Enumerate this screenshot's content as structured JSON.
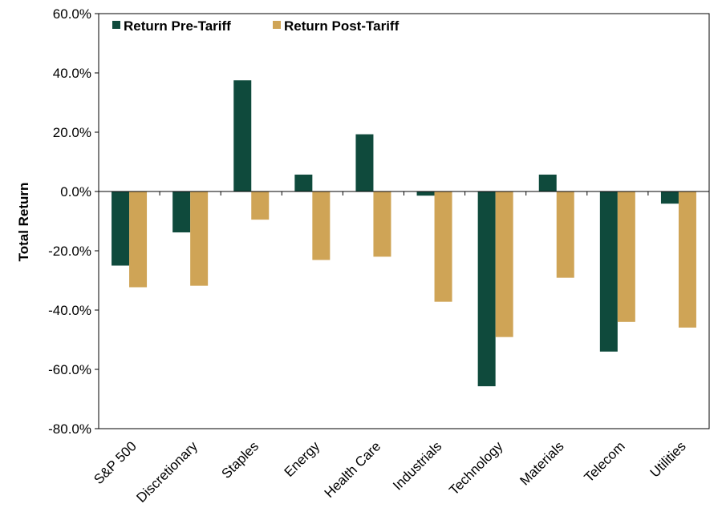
{
  "chart_data": {
    "type": "bar",
    "title": "",
    "xlabel": "",
    "ylabel": "Total Return",
    "ylim": [
      -80,
      60
    ],
    "yticks": [
      60,
      40,
      20,
      0,
      -20,
      -40,
      -60,
      -80
    ],
    "ytick_labels": [
      "60.0%",
      "40.0%",
      "20.0%",
      "0.0%",
      "-20.0%",
      "-40.0%",
      "-60.0%",
      "-80.0%"
    ],
    "grid": false,
    "legend_position": "top-left",
    "categories": [
      "S&P 500",
      "Discretionary",
      "Staples",
      "Energy",
      "Health Care",
      "Industrials",
      "Technology",
      "Materials",
      "Telecom",
      "Utilities"
    ],
    "series": [
      {
        "name": "Return Pre-Tariff",
        "color": "#0f4a3c",
        "values": [
          -25.0,
          -13.8,
          37.5,
          5.7,
          19.3,
          -1.4,
          -65.7,
          5.7,
          -54.0,
          -4.1
        ]
      },
      {
        "name": "Return Post-Tariff",
        "color": "#cfa456",
        "values": [
          -32.3,
          -31.8,
          -9.5,
          -23.1,
          -22.0,
          -37.2,
          -49.1,
          -29.1,
          -44.0,
          -45.9
        ]
      }
    ]
  }
}
